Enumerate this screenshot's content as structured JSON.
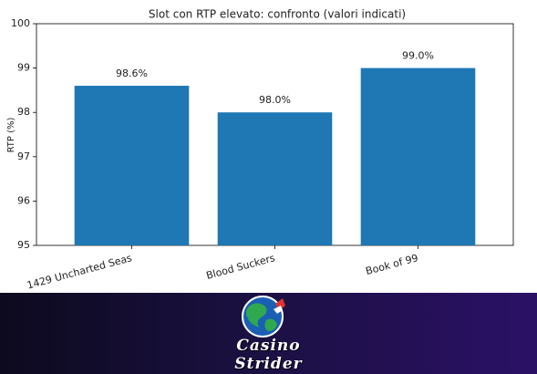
{
  "chart_data": {
    "type": "bar",
    "title": "Slot con RTP elevato: confronto (valori indicati)",
    "y_label": "RTP (%)",
    "categories": [
      "1429 Uncharted Seas",
      "Blood Suckers",
      "Book of 99"
    ],
    "values": [
      98.6,
      98.0,
      99.0
    ],
    "value_labels": [
      "98.6%",
      "98.0%",
      "99.0%"
    ],
    "color": "#1f77b4",
    "ylim": [
      95,
      100
    ],
    "yticks": [
      95,
      96,
      97,
      98,
      99,
      100
    ],
    "grid": false
  },
  "footer": {
    "brand": [
      "Casino",
      "Strider"
    ]
  }
}
